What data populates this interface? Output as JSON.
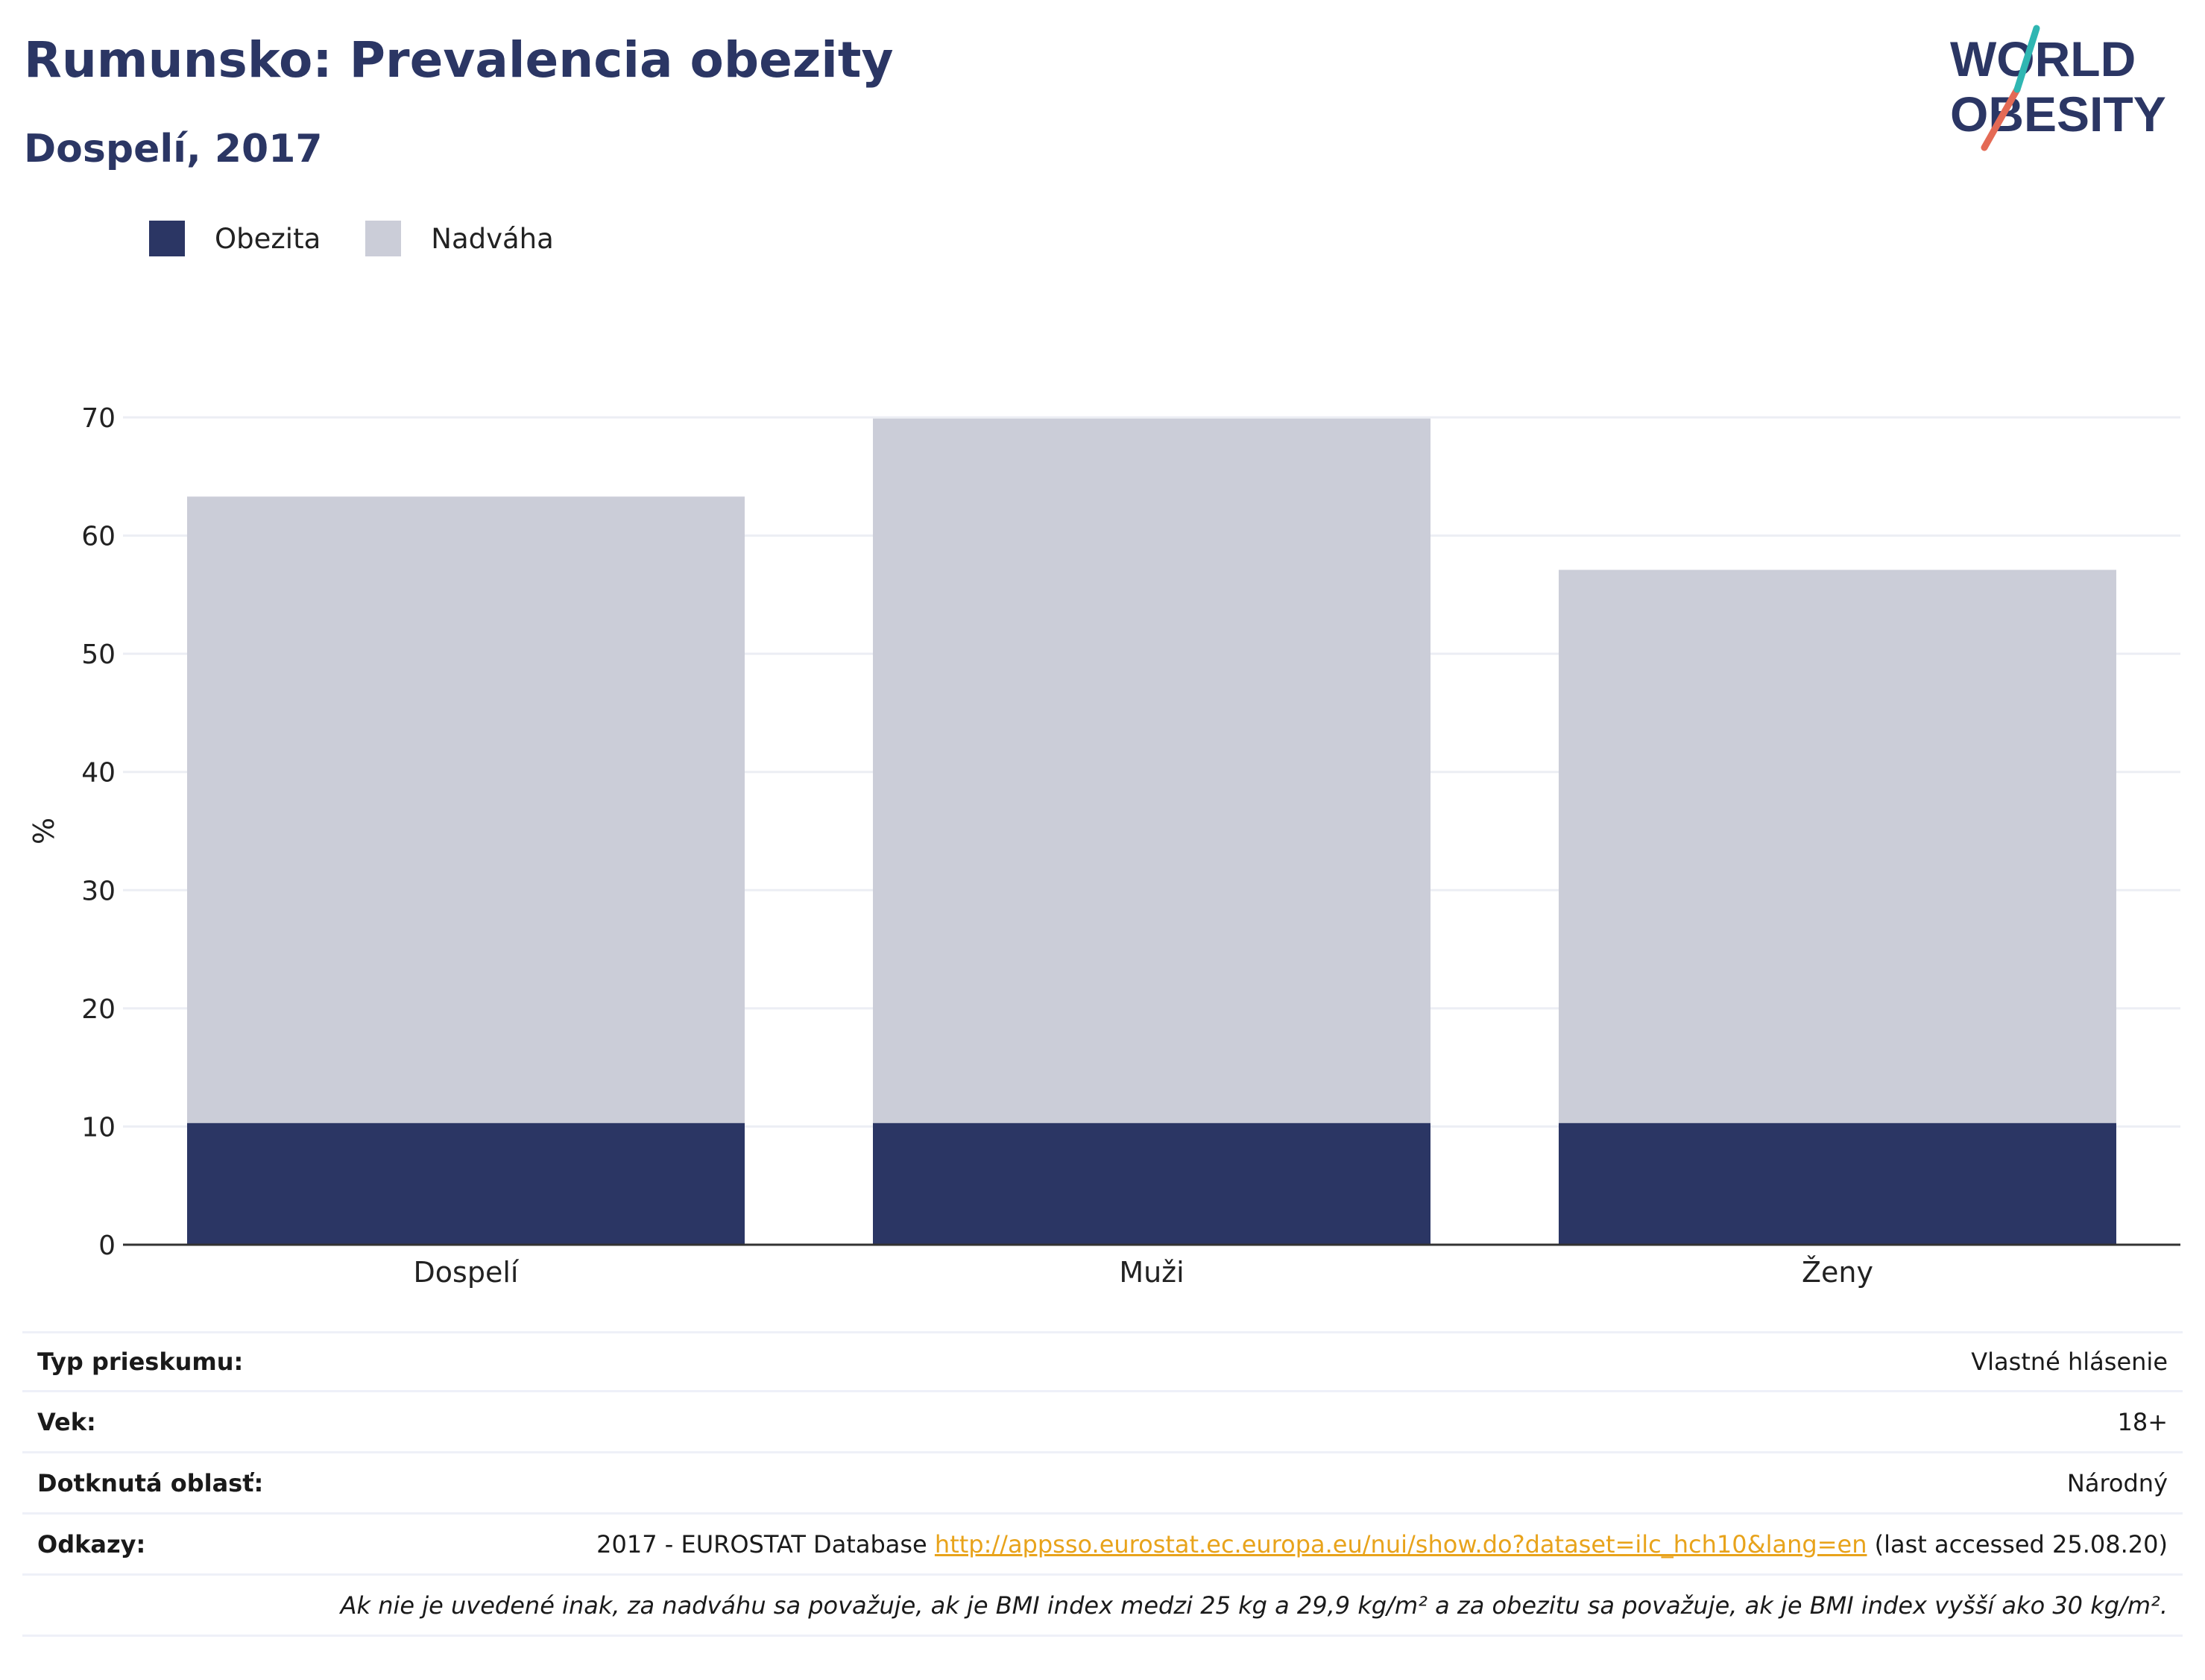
{
  "title": "Rumunsko: Prevalencia obezity",
  "subtitle": "Dospelí, 2017",
  "logo": {
    "line1": "WORLD",
    "line2": "OBESITY"
  },
  "colors": {
    "obesity": "#2b3664",
    "overweight": "#cbcdd8",
    "link": "#e8a31b",
    "title": "#2b3664"
  },
  "legend": [
    {
      "label": "Obezita",
      "color": "#2b3664"
    },
    {
      "label": "Nadváha",
      "color": "#cbcdd8"
    }
  ],
  "chart_data": {
    "type": "bar",
    "stacked": true,
    "categories": [
      "Dospelí",
      "Muži",
      "Ženy"
    ],
    "series": [
      {
        "name": "Obezita",
        "values": [
          10.3,
          10.3,
          10.3
        ]
      },
      {
        "name": "Nadváha",
        "values": [
          53.0,
          59.6,
          46.8
        ]
      }
    ],
    "ylabel": "%",
    "ylim": [
      0,
      70
    ],
    "yticks": [
      0,
      10,
      20,
      30,
      40,
      50,
      60,
      70
    ],
    "grid": true,
    "legend_position": "top-left"
  },
  "details": [
    {
      "key": "Typ prieskumu:",
      "value": "Vlastné hlásenie"
    },
    {
      "key": "Vek:",
      "value": "18+"
    },
    {
      "key": "Dotknutá oblasť:",
      "value": "Národný"
    }
  ],
  "references": {
    "key": "Odkazy:",
    "prefix": "2017 - EUROSTAT Database ",
    "link": "http://appsso.eurostat.ec.europa.eu/nui/show.do?dataset=ilc_hch10&lang=en",
    "suffix": " (last accessed 25.08.20)"
  },
  "footnote": "Ak nie je uvedené inak, za nadváhu sa považuje, ak je BMI index medzi 25 kg a 29,9 kg/m² a za obezitu sa považuje, ak je BMI index vyšší ako 30 kg/m²."
}
